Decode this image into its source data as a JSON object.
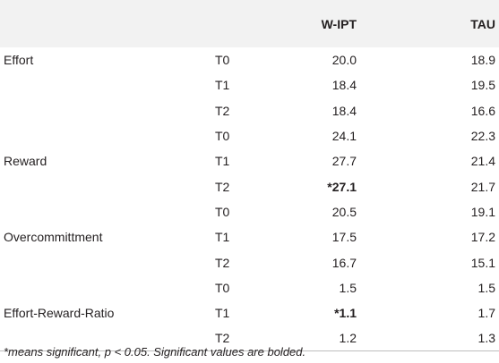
{
  "table": {
    "headers": [
      "",
      "",
      "W-IPT",
      "TAU"
    ],
    "rows": [
      {
        "measure": "Effort",
        "time": "T0",
        "wipt": "20.0",
        "tau": "18.9",
        "wipt_bold": false
      },
      {
        "measure": "",
        "time": "T1",
        "wipt": "18.4",
        "tau": "19.5",
        "wipt_bold": false
      },
      {
        "measure": "",
        "time": "T2",
        "wipt": "18.4",
        "tau": "16.6",
        "wipt_bold": false
      },
      {
        "measure": "",
        "time": "T0",
        "wipt": "24.1",
        "tau": "22.3",
        "wipt_bold": false
      },
      {
        "measure": "Reward",
        "time": "T1",
        "wipt": "27.7",
        "tau": "21.4",
        "wipt_bold": false
      },
      {
        "measure": "",
        "time": "T2",
        "wipt": "*27.1",
        "tau": "21.7",
        "wipt_bold": true
      },
      {
        "measure": "",
        "time": "T0",
        "wipt": "20.5",
        "tau": "19.1",
        "wipt_bold": false
      },
      {
        "measure": "Overcommittment",
        "time": "T1",
        "wipt": "17.5",
        "tau": "17.2",
        "wipt_bold": false
      },
      {
        "measure": "",
        "time": "T2",
        "wipt": "16.7",
        "tau": "15.1",
        "wipt_bold": false
      },
      {
        "measure": "",
        "time": "T0",
        "wipt": "1.5",
        "tau": "1.5",
        "wipt_bold": false
      },
      {
        "measure": "Effort-Reward-Ratio",
        "time": "T1",
        "wipt": "*1.1",
        "tau": "1.7",
        "wipt_bold": true
      },
      {
        "measure": "",
        "time": "T2",
        "wipt": "1.2",
        "tau": "1.3",
        "wipt_bold": false
      }
    ]
  },
  "footnote": "*means significant, p < 0.05. Significant values are bolded."
}
